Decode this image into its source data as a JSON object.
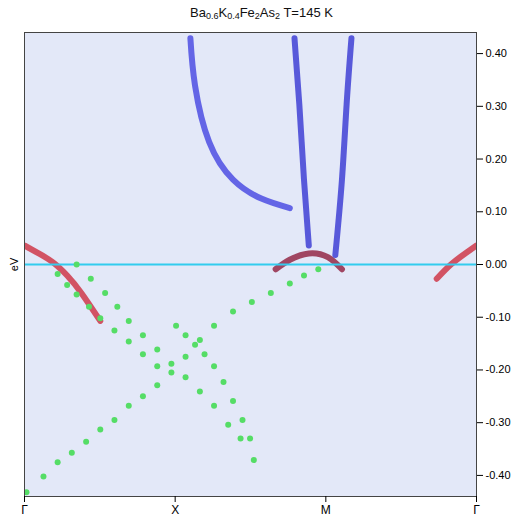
{
  "chart_data": {
    "type": "scatter",
    "title": "Ba0.6K0.4Fe2As2 T=145 K",
    "ylabel": "eV",
    "xlim": [
      0,
      3
    ],
    "ylim": [
      -0.44,
      0.44
    ],
    "xticks": [
      {
        "value": 0,
        "label": "Γ"
      },
      {
        "value": 1,
        "label": "X"
      },
      {
        "value": 2,
        "label": "M"
      },
      {
        "value": 3,
        "label": "Γ"
      }
    ],
    "yticks": [
      {
        "value": 0.4,
        "label": "0.40"
      },
      {
        "value": 0.3,
        "label": "0.30"
      },
      {
        "value": 0.2,
        "label": "0.20"
      },
      {
        "value": 0.1,
        "label": "0.10"
      },
      {
        "value": 0,
        "label": "0.00"
      },
      {
        "value": -0.1,
        "label": "-0.10"
      },
      {
        "value": -0.2,
        "label": "-0.20"
      },
      {
        "value": -0.3,
        "label": "-0.30"
      },
      {
        "value": -0.4,
        "label": "-0.40"
      }
    ],
    "grid": false,
    "series": [
      {
        "type": "line",
        "color": "#cc2233",
        "x": [
          0,
          0.094,
          0.189,
          0.283,
          0.377,
          0.503
        ],
        "values": [
          0.036,
          0.021,
          0.004,
          -0.021,
          -0.054,
          -0.107
        ]
      },
      {
        "type": "line",
        "color": "#cc2233",
        "x": [
          3.0,
          2.925,
          2.83,
          2.736
        ],
        "values": [
          0.036,
          0.021,
          0,
          -0.027
        ]
      },
      {
        "type": "line",
        "color": "#8a1030",
        "x": [
          1.667,
          1.761,
          1.887,
          2.013,
          2.107
        ],
        "values": [
          -0.009,
          0.009,
          0.021,
          0.014,
          -0.009
        ]
      },
      {
        "type": "line",
        "color": "#2a2ad0",
        "x": [
          1.792,
          1.824,
          1.855,
          1.887
        ],
        "values": [
          0.429,
          0.304,
          0.161,
          0.036
        ]
      },
      {
        "type": "line",
        "color": "#2a2ad0",
        "x": [
          2.17,
          2.138,
          2.107,
          2.063
        ],
        "values": [
          0.429,
          0.304,
          0.161,
          0.018
        ]
      },
      {
        "type": "line",
        "color": "#3a3ae0",
        "x": [
          1.101,
          1.132,
          1.226,
          1.384,
          1.572,
          1.761
        ],
        "values": [
          0.429,
          0.339,
          0.232,
          0.161,
          0.125,
          0.107
        ]
      },
      {
        "type": "line",
        "color": "#33ccee",
        "x": [
          0,
          3
        ],
        "values": [
          0,
          0
        ]
      },
      {
        "type": "scatter",
        "marker": "circle",
        "color": "#55dd66",
        "x": [
          0.346,
          0.44,
          0.535,
          0.616,
          0.692,
          0.786,
          0.881,
          0.975,
          1.069,
          1.164,
          1.258,
          1.352,
          1.434,
          1.522
        ],
        "values": [
          0,
          -0.027,
          -0.054,
          -0.08,
          -0.107,
          -0.134,
          -0.161,
          -0.188,
          -0.214,
          -0.241,
          -0.268,
          -0.304,
          -0.33,
          -0.371
        ]
      },
      {
        "type": "scatter",
        "marker": "circle",
        "color": "#55dd66",
        "x": [
          0.22,
          0.283,
          0.346,
          0.428,
          0.503,
          0.597,
          0.692,
          0.786,
          0.881
        ],
        "values": [
          -0.018,
          -0.039,
          -0.057,
          -0.08,
          -0.102,
          -0.125,
          -0.146,
          -0.17,
          -0.193
        ]
      },
      {
        "type": "scatter",
        "marker": "circle",
        "color": "#55dd66",
        "x": [
          0.013,
          0.126,
          0.22,
          0.314,
          0.409,
          0.503,
          0.597,
          0.692,
          0.786,
          0.881,
          0.975,
          1.069,
          1.164,
          1.258,
          1.384,
          1.509,
          1.635,
          1.761,
          1.855,
          1.95
        ],
        "values": [
          -0.432,
          -0.402,
          -0.375,
          -0.357,
          -0.336,
          -0.313,
          -0.295,
          -0.268,
          -0.25,
          -0.229,
          -0.205,
          -0.175,
          -0.143,
          -0.116,
          -0.089,
          -0.071,
          -0.054,
          -0.036,
          -0.021,
          -0.009
        ]
      },
      {
        "type": "scatter",
        "marker": "circle",
        "color": "#55dd66",
        "x": [
          1.006,
          1.069,
          1.132,
          1.195,
          1.258,
          1.321,
          1.384,
          1.447,
          1.497
        ],
        "values": [
          -0.116,
          -0.134,
          -0.152,
          -0.17,
          -0.193,
          -0.223,
          -0.259,
          -0.295,
          -0.33
        ]
      }
    ]
  }
}
